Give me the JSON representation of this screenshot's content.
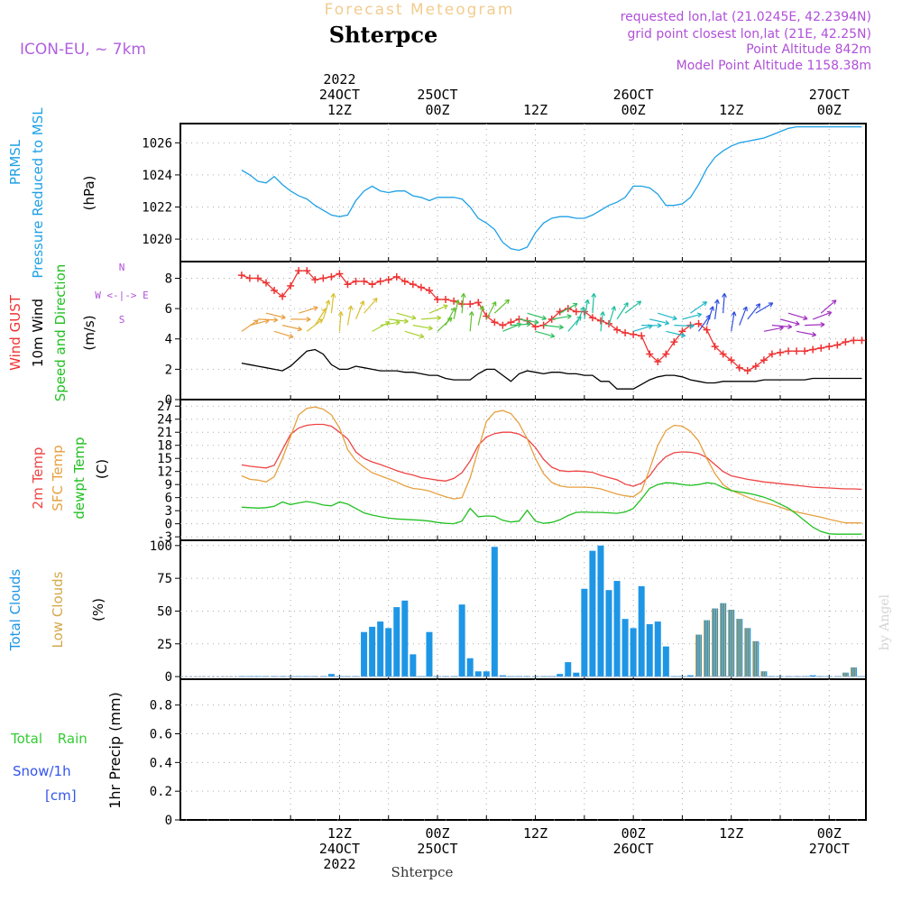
{
  "header": {
    "title": "Forecast Meteogram",
    "station": "Shterpce",
    "model": "ICON-EU, ~ 7km",
    "requested": "requested lon,lat (21.0245E, 42.2394N)",
    "gridpoint": "grid point closest lon,lat (21E, 42.25N)",
    "point_alt": "Point Altitude 842m",
    "model_alt": "Model Point Altitude 1158.38m",
    "footer_station": "Shterpce",
    "credit": "by Angel"
  },
  "time_axis": {
    "top_labels": [
      {
        "h": 12,
        "lines": [
          "2022",
          "24OCT",
          "12Z"
        ]
      },
      {
        "h": 24,
        "lines": [
          "25OCT",
          "00Z"
        ]
      },
      {
        "h": 36,
        "lines": [
          "12Z"
        ]
      },
      {
        "h": 48,
        "lines": [
          "26OCT",
          "00Z"
        ]
      },
      {
        "h": 60,
        "lines": [
          "12Z"
        ]
      },
      {
        "h": 72,
        "lines": [
          "27OCT",
          "00Z"
        ]
      }
    ],
    "bottom_labels": [
      {
        "h": 12,
        "lines": [
          "12Z",
          "24OCT",
          "2022"
        ]
      },
      {
        "h": 24,
        "lines": [
          "00Z",
          "25OCT"
        ]
      },
      {
        "h": 36,
        "lines": [
          "12Z"
        ]
      },
      {
        "h": 48,
        "lines": [
          "00Z",
          "26OCT"
        ]
      },
      {
        "h": 60,
        "lines": [
          "12Z"
        ]
      },
      {
        "h": 72,
        "lines": [
          "00Z",
          "27OCT"
        ]
      }
    ],
    "grid_hours": [
      6,
      12,
      18,
      24,
      30,
      36,
      42,
      48,
      54,
      60,
      66,
      72
    ]
  },
  "colors": {
    "prmsl": "#1ea0e6",
    "gust": "#ee3333",
    "wind": "#000000",
    "t2m": "#ee4444",
    "sfc": "#e6a040",
    "dew": "#22c022",
    "clouds": "#1e96e6",
    "low": "#d4a84a",
    "rain": "#33cc33",
    "snow": "#3355ee"
  },
  "chart_data": [
    {
      "type": "line",
      "name": "prmsl",
      "ylabel": [
        "PRMSL",
        "Pressure Reduced to MSL"
      ],
      "unit": "(hPa)",
      "yticks": [
        1020,
        1022,
        1024,
        1026
      ],
      "ylim": [
        1018.6,
        1027.2
      ],
      "x": [
        0,
        1,
        2,
        3,
        4,
        5,
        6,
        7,
        8,
        9,
        10,
        11,
        12,
        13,
        14,
        15,
        16,
        17,
        18,
        19,
        20,
        21,
        22,
        23,
        24,
        25,
        26,
        27,
        28,
        29,
        30,
        31,
        32,
        33,
        34,
        35,
        36,
        37,
        38,
        39,
        40,
        41,
        42,
        43,
        44,
        45,
        46,
        47,
        48,
        49,
        50,
        51,
        52,
        53,
        54,
        55,
        56,
        57,
        58,
        59,
        60,
        61,
        62,
        63,
        64,
        65,
        66,
        67,
        68,
        69,
        70,
        71,
        72,
        73,
        74,
        75,
        76
      ],
      "y": [
        1024.3,
        1024,
        1023.6,
        1023.5,
        1023.9,
        1023.4,
        1023.0,
        1022.7,
        1022.5,
        1022.1,
        1021.8,
        1021.5,
        1021.4,
        1021.5,
        1022.4,
        1023.0,
        1023.3,
        1023.0,
        1022.9,
        1023.0,
        1023.0,
        1022.7,
        1022.6,
        1022.4,
        1022.6,
        1022.6,
        1022.6,
        1022.5,
        1022.0,
        1021.3,
        1021.0,
        1020.6,
        1019.8,
        1019.4,
        1019.3,
        1019.5,
        1020.4,
        1021.0,
        1021.3,
        1021.4,
        1021.4,
        1021.3,
        1021.3,
        1021.5,
        1021.8,
        1022.1,
        1022.3,
        1022.6,
        1023.3,
        1023.3,
        1023.2,
        1022.8,
        1022.1,
        1022.1,
        1022.2,
        1022.6,
        1023.4,
        1024.4,
        1025.1,
        1025.5,
        1025.8,
        1026.0,
        1026.1,
        1026.2,
        1026.3,
        1026.5,
        1026.7,
        1026.9,
        1027.0,
        1027.0,
        1027.0,
        1027.0,
        1027.0,
        1027.0,
        1027.0,
        1027.0,
        1027.0
      ]
    },
    {
      "type": "line",
      "name": "wind",
      "ylabel": [
        "Wind GUST",
        "10m Wind",
        "Speed and Direction"
      ],
      "unit": "(m/s)",
      "compass": [
        "N",
        "W <-|-> E",
        "S"
      ],
      "yticks": [
        0,
        2,
        4,
        6,
        8
      ],
      "ylim": [
        0,
        9.1
      ],
      "x": [
        0,
        1,
        2,
        3,
        4,
        5,
        6,
        7,
        8,
        9,
        10,
        11,
        12,
        13,
        14,
        15,
        16,
        17,
        18,
        19,
        20,
        21,
        22,
        23,
        24,
        25,
        26,
        27,
        28,
        29,
        30,
        31,
        32,
        33,
        34,
        35,
        36,
        37,
        38,
        39,
        40,
        41,
        42,
        43,
        44,
        45,
        46,
        47,
        48,
        49,
        50,
        51,
        52,
        53,
        54,
        55,
        56,
        57,
        58,
        59,
        60,
        61,
        62,
        63,
        64,
        65,
        66,
        67,
        68,
        69,
        70,
        71,
        72,
        73,
        74,
        75,
        76
      ],
      "gust": [
        8.2,
        8.0,
        8.0,
        7.7,
        7.2,
        6.8,
        7.5,
        8.5,
        8.5,
        7.9,
        8.0,
        8.1,
        8.3,
        7.6,
        7.8,
        7.8,
        7.6,
        7.8,
        7.9,
        8.1,
        7.8,
        7.6,
        7.4,
        7.2,
        6.6,
        6.6,
        6.5,
        6.3,
        6.3,
        6.4,
        5.5,
        5.1,
        4.9,
        5.1,
        5.3,
        5.2,
        4.8,
        4.9,
        5.3,
        5.8,
        6.0,
        5.8,
        5.8,
        5.4,
        5.2,
        5.0,
        4.6,
        4.4,
        4.3,
        4.2,
        3.0,
        2.5,
        3.0,
        3.8,
        4.5,
        4.9,
        5.0,
        4.6,
        3.5,
        3.0,
        2.6,
        2.1,
        1.9,
        2.2,
        2.6,
        3.0,
        3.1,
        3.2,
        3.2,
        3.2,
        3.3,
        3.4,
        3.5,
        3.6,
        3.8,
        3.9,
        3.9
      ],
      "speed": [
        2.4,
        2.3,
        2.2,
        2.1,
        2.0,
        1.9,
        2.2,
        2.7,
        3.2,
        3.3,
        3.0,
        2.3,
        2.0,
        2.0,
        2.2,
        2.1,
        2.0,
        1.9,
        1.9,
        1.9,
        1.8,
        1.8,
        1.7,
        1.6,
        1.6,
        1.4,
        1.3,
        1.3,
        1.3,
        1.7,
        2.0,
        2.0,
        1.6,
        1.2,
        1.7,
        1.9,
        1.8,
        1.7,
        1.8,
        1.8,
        1.7,
        1.7,
        1.6,
        1.6,
        1.2,
        1.2,
        0.7,
        0.7,
        0.7,
        1.0,
        1.3,
        1.5,
        1.6,
        1.6,
        1.5,
        1.3,
        1.2,
        1.1,
        1.1,
        1.2,
        1.2,
        1.2,
        1.2,
        1.2,
        1.3,
        1.3,
        1.3,
        1.3,
        1.3,
        1.3,
        1.4,
        1.4,
        1.4,
        1.4,
        1.4,
        1.4,
        1.4
      ]
    },
    {
      "type": "line",
      "name": "temperature",
      "ylabel": [
        "2m Temp",
        "SFC Temp",
        "dewpt Temp"
      ],
      "unit": "(C)",
      "yticks": [
        -3,
        0,
        3,
        6,
        9,
        12,
        15,
        18,
        21,
        24,
        27
      ],
      "ylim": [
        -3.8,
        28.5
      ],
      "x": [
        0,
        1,
        2,
        3,
        4,
        5,
        6,
        7,
        8,
        9,
        10,
        11,
        12,
        13,
        14,
        15,
        16,
        17,
        18,
        19,
        20,
        21,
        22,
        23,
        24,
        25,
        26,
        27,
        28,
        29,
        30,
        31,
        32,
        33,
        34,
        35,
        36,
        37,
        38,
        39,
        40,
        41,
        42,
        43,
        44,
        45,
        46,
        47,
        48,
        49,
        50,
        51,
        52,
        53,
        54,
        55,
        56,
        57,
        58,
        59,
        60,
        61,
        62,
        63,
        64,
        65,
        66,
        67,
        68,
        69,
        70,
        71,
        72,
        73,
        74,
        75,
        76
      ],
      "t2m": [
        13.5,
        13.2,
        13.0,
        12.8,
        13.4,
        17.0,
        20.5,
        22.0,
        22.6,
        22.8,
        22.8,
        22.4,
        21.0,
        19.5,
        16.5,
        15.0,
        14.2,
        13.6,
        12.9,
        12.2,
        11.6,
        11.2,
        10.6,
        10.3,
        10.0,
        9.8,
        10.4,
        11.7,
        14.4,
        18.0,
        19.9,
        20.7,
        21.0,
        21.0,
        20.6,
        19.5,
        17.5,
        14.8,
        13.0,
        12.2,
        12.0,
        12.1,
        12.0,
        11.8,
        11.1,
        10.6,
        10.1,
        9.1,
        8.6,
        9.3,
        11.0,
        13.6,
        15.4,
        16.3,
        16.5,
        16.4,
        16.1,
        15.2,
        13.6,
        12.0,
        11.0,
        10.6,
        10.2,
        9.9,
        9.6,
        9.4,
        9.2,
        9.0,
        8.8,
        8.6,
        8.4,
        8.3,
        8.2,
        8.1,
        8.0,
        8.0,
        7.9
      ],
      "sfc": [
        11.0,
        10.2,
        10.0,
        9.6,
        10.8,
        15.0,
        20.0,
        25.0,
        26.5,
        26.8,
        26.3,
        25.0,
        22.0,
        17.0,
        14.5,
        13.0,
        11.7,
        11.0,
        10.3,
        9.6,
        8.7,
        8.1,
        7.9,
        7.5,
        6.8,
        6.2,
        5.7,
        6.0,
        10.5,
        17.0,
        23.5,
        25.6,
        26.0,
        25.3,
        23.0,
        19.5,
        15.0,
        11.5,
        9.5,
        8.7,
        8.4,
        8.4,
        8.4,
        8.3,
        8.0,
        7.4,
        6.8,
        6.4,
        6.2,
        7.5,
        12.5,
        18.0,
        21.4,
        22.6,
        22.4,
        21.2,
        19.0,
        15.0,
        11.5,
        9.0,
        7.7,
        6.9,
        6.1,
        5.4,
        4.9,
        4.4,
        3.8,
        3.2,
        2.7,
        2.3,
        1.9,
        1.5,
        1.0,
        0.6,
        0.2,
        0.2,
        0.2
      ],
      "dew": [
        3.8,
        3.7,
        3.6,
        3.7,
        4.0,
        5.0,
        4.4,
        4.8,
        5.1,
        4.8,
        4.3,
        4.1,
        5.0,
        4.5,
        3.5,
        2.5,
        2.0,
        1.6,
        1.3,
        1.1,
        1.0,
        0.9,
        0.8,
        0.6,
        0.3,
        0.1,
        0.0,
        0.6,
        3.5,
        1.6,
        1.8,
        1.7,
        0.8,
        0.4,
        0.6,
        3.1,
        0.6,
        0.1,
        0.3,
        0.9,
        1.9,
        2.6,
        2.7,
        2.6,
        2.6,
        2.5,
        2.4,
        2.7,
        3.5,
        5.7,
        8.1,
        9.0,
        9.4,
        9.3,
        9.0,
        8.8,
        9.0,
        9.4,
        9.2,
        8.3,
        7.6,
        7.3,
        7.0,
        6.6,
        6.1,
        5.4,
        4.5,
        3.6,
        2.2,
        0.7,
        -0.8,
        -1.8,
        -2.3,
        -2.4,
        -2.4,
        -2.4,
        -2.4
      ]
    },
    {
      "type": "bar",
      "name": "clouds",
      "ylabel": [
        "Total Clouds",
        "Low Clouds"
      ],
      "unit": "(%)",
      "yticks": [
        0,
        25,
        50,
        75,
        100
      ],
      "ylim": [
        -2,
        104
      ],
      "x": [
        0,
        1,
        2,
        3,
        4,
        5,
        6,
        7,
        8,
        9,
        10,
        11,
        12,
        13,
        14,
        15,
        16,
        17,
        18,
        19,
        20,
        21,
        22,
        23,
        24,
        25,
        26,
        27,
        28,
        29,
        30,
        31,
        32,
        33,
        34,
        35,
        36,
        37,
        38,
        39,
        40,
        41,
        42,
        43,
        44,
        45,
        46,
        47,
        48,
        49,
        50,
        51,
        52,
        53,
        54,
        55,
        56,
        57,
        58,
        59,
        60,
        61,
        62,
        63,
        64,
        65,
        66,
        67,
        68,
        69,
        70,
        71,
        72,
        73,
        74,
        75,
        76
      ],
      "total": [
        0,
        0,
        0,
        0,
        0,
        0,
        0,
        0,
        0,
        0,
        0,
        2,
        0,
        0,
        0,
        34,
        38,
        42,
        37,
        53,
        58,
        17,
        0,
        34,
        0,
        0,
        0,
        55,
        14,
        4,
        4,
        99,
        1,
        0,
        0,
        0,
        0,
        0,
        0,
        2,
        11,
        3,
        67,
        96,
        100,
        66,
        73,
        44,
        37,
        69,
        40,
        42,
        23,
        0,
        0,
        1,
        32,
        43,
        52,
        56,
        51,
        44,
        37,
        27,
        4,
        0,
        0,
        0,
        0,
        0,
        1,
        0,
        0,
        0,
        3,
        7,
        0
      ],
      "low": [
        0,
        0,
        0,
        0,
        0,
        0,
        0,
        0,
        0,
        0,
        0,
        0,
        0,
        0,
        0,
        0,
        0,
        0,
        0,
        0,
        0,
        0,
        0,
        0,
        0,
        0,
        0,
        0,
        0,
        0,
        0,
        0,
        0,
        0,
        0,
        0,
        0,
        0,
        0,
        0,
        0,
        0,
        0,
        0,
        0,
        0,
        0,
        0,
        0,
        0,
        0,
        0,
        0,
        0,
        0,
        0,
        32,
        43,
        52,
        56,
        51,
        44,
        37,
        27,
        4,
        0,
        0,
        0,
        0,
        0,
        0,
        0,
        0,
        0,
        3,
        7,
        0
      ]
    },
    {
      "type": "bar",
      "name": "precip",
      "ylabel": [
        "Total Rain",
        "Snow/1h",
        "[cm]"
      ],
      "unit": "1hr Precip (mm)",
      "yticks": [
        0,
        0.2,
        0.4,
        0.6,
        0.8
      ],
      "ylim": [
        0,
        0.98
      ],
      "values": []
    }
  ]
}
